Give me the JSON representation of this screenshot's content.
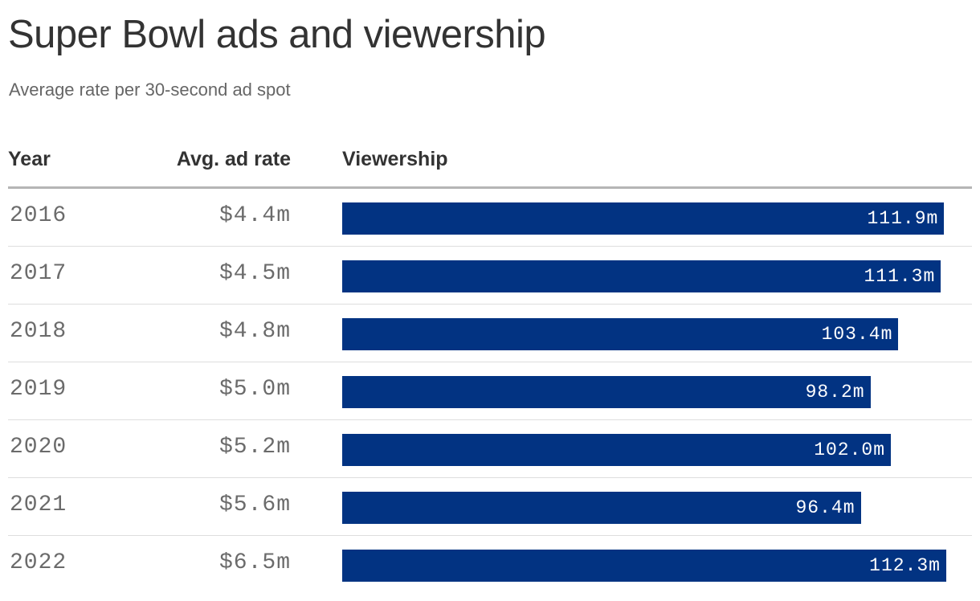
{
  "header": {
    "title": "Super Bowl ads and viewership",
    "subtitle": "Average rate per 30-second ad spot"
  },
  "columns": {
    "year": "Year",
    "rate": "Avg. ad rate",
    "viewership": "Viewership"
  },
  "colors": {
    "bar": "#023382",
    "bar_label": "#ffffff",
    "text": "#333333",
    "muted_text": "#6b6b6b"
  },
  "chart_data": {
    "type": "table",
    "title": "Super Bowl ads and viewership",
    "subtitle": "Average rate per 30-second ad spot",
    "columns": [
      "Year",
      "Avg. ad rate",
      "Viewership"
    ],
    "bar_column": "Viewership",
    "bar_max": 112.3,
    "rows": [
      {
        "year": "2016",
        "rate": "$4.4m",
        "viewership": 111.9,
        "viewership_label": "111.9m"
      },
      {
        "year": "2017",
        "rate": "$4.5m",
        "viewership": 111.3,
        "viewership_label": "111.3m"
      },
      {
        "year": "2018",
        "rate": "$4.8m",
        "viewership": 103.4,
        "viewership_label": "103.4m"
      },
      {
        "year": "2019",
        "rate": "$5.0m",
        "viewership": 98.2,
        "viewership_label": "98.2m"
      },
      {
        "year": "2020",
        "rate": "$5.2m",
        "viewership": 102.0,
        "viewership_label": "102.0m"
      },
      {
        "year": "2021",
        "rate": "$5.6m",
        "viewership": 96.4,
        "viewership_label": "96.4m"
      },
      {
        "year": "2022",
        "rate": "$6.5m",
        "viewership": 112.3,
        "viewership_label": "112.3m"
      }
    ]
  }
}
